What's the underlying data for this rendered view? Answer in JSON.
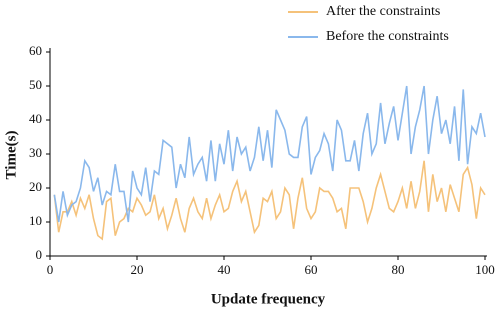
{
  "chart_data": {
    "type": "line",
    "x": [
      1,
      2,
      3,
      4,
      5,
      6,
      7,
      8,
      9,
      10,
      11,
      12,
      13,
      14,
      15,
      16,
      17,
      18,
      19,
      20,
      21,
      22,
      23,
      24,
      25,
      26,
      27,
      28,
      29,
      30,
      31,
      32,
      33,
      34,
      35,
      36,
      37,
      38,
      39,
      40,
      41,
      42,
      43,
      44,
      45,
      46,
      47,
      48,
      49,
      50,
      51,
      52,
      53,
      54,
      55,
      56,
      57,
      58,
      59,
      60,
      61,
      62,
      63,
      64,
      65,
      66,
      67,
      68,
      69,
      70,
      71,
      72,
      73,
      74,
      75,
      76,
      77,
      78,
      79,
      80,
      81,
      82,
      83,
      84,
      85,
      86,
      87,
      88,
      89,
      90,
      91,
      92,
      93,
      94,
      95,
      96,
      97,
      98,
      99,
      100
    ],
    "series": [
      {
        "name": "After the constraints",
        "color": "#f5c27a",
        "values": [
          18,
          7,
          13,
          13,
          16,
          12,
          17,
          14,
          18,
          11,
          6,
          5,
          16,
          17,
          6,
          10,
          11,
          14,
          13,
          17,
          15,
          12,
          13,
          18,
          11,
          14,
          8,
          12,
          17,
          11,
          7,
          14,
          17,
          13,
          11,
          17,
          11,
          15,
          18,
          13,
          14,
          19,
          22,
          16,
          19,
          13,
          7,
          9,
          17,
          16,
          19,
          11,
          13,
          20,
          18,
          8,
          17,
          23,
          14,
          11,
          13,
          20,
          19,
          19,
          17,
          13,
          14,
          8,
          20,
          20,
          20,
          16,
          10,
          14,
          20,
          24,
          19,
          14,
          13,
          16,
          20,
          14,
          22,
          14,
          19,
          28,
          13,
          24,
          16,
          20,
          13,
          21,
          17,
          13,
          24,
          26,
          21,
          11,
          20,
          18
        ]
      },
      {
        "name": "Before the constraints",
        "color": "#8ab8ec",
        "values": [
          18,
          10,
          19,
          12,
          15,
          16,
          20,
          28,
          26,
          19,
          23,
          15,
          19,
          18,
          27,
          19,
          19,
          10,
          25,
          20,
          18,
          26,
          16,
          25,
          24,
          34,
          33,
          32,
          20,
          27,
          23,
          35,
          24,
          27,
          29,
          22,
          34,
          22,
          33,
          27,
          37,
          25,
          35,
          30,
          32,
          25,
          29,
          38,
          28,
          37,
          26,
          43,
          40,
          37,
          30,
          29,
          29,
          38,
          41,
          24,
          29,
          31,
          36,
          33,
          25,
          40,
          37,
          28,
          28,
          34,
          25,
          36,
          42,
          30,
          33,
          45,
          33,
          39,
          44,
          34,
          42,
          50,
          30,
          38,
          43,
          50,
          30,
          40,
          47,
          36,
          40,
          33,
          44,
          28,
          49,
          27,
          38,
          36,
          42,
          35
        ]
      }
    ],
    "x_label": "Update frequency",
    "y_label": "Time(s)",
    "xlim": [
      0,
      100
    ],
    "xticks": [
      0,
      20,
      40,
      60,
      80,
      100
    ],
    "ylim": [
      0,
      60
    ],
    "yticks": [
      0,
      10,
      20,
      30,
      40,
      50,
      60
    ],
    "grid": false,
    "legend": "top-right"
  }
}
